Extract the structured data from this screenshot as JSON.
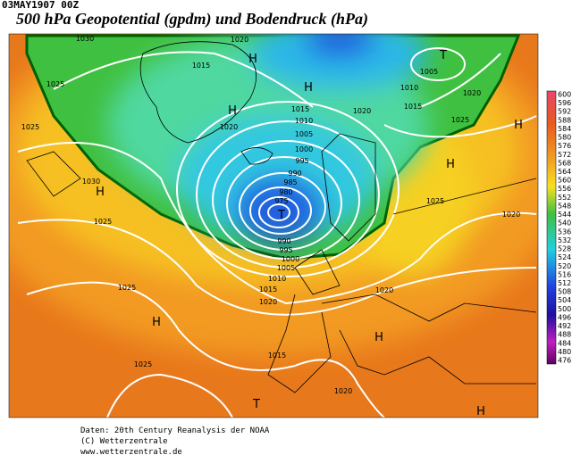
{
  "header": {
    "date": "03MAY1907 00Z",
    "title": "500 hPa Geopotential (gpdm) und Bodendruck (hPa)"
  },
  "colorbar": {
    "labels": [
      600,
      596,
      592,
      588,
      584,
      580,
      576,
      572,
      568,
      564,
      560,
      556,
      552,
      548,
      544,
      540,
      536,
      532,
      528,
      524,
      520,
      516,
      512,
      508,
      504,
      500,
      496,
      492,
      488,
      484,
      480,
      476
    ]
  },
  "map": {
    "isobar_labels": [
      "1030",
      "1020",
      "1015",
      "1025",
      "1005",
      "1010",
      "1015",
      "1020",
      "1015",
      "1020",
      "1010",
      "1020",
      "1005",
      "1025",
      "1000",
      "1025",
      "995",
      "990",
      "985",
      "980",
      "975",
      "1030",
      "1025",
      "1025",
      "1020",
      "990",
      "995",
      "1000",
      "1005",
      "1010",
      "1015",
      "1020",
      "1020",
      "1025",
      "1025",
      "1015",
      "1020"
    ],
    "pressure_centers": [
      "H",
      "H",
      "H",
      "T",
      "H",
      "H",
      "H",
      "T",
      "H",
      "H",
      "T",
      "H"
    ]
  },
  "footer": {
    "lines": [
      "Daten: 20th Century Reanalysis der NOAA",
      "(C) Wetterzentrale",
      "www.wetterzentrale.de"
    ]
  }
}
